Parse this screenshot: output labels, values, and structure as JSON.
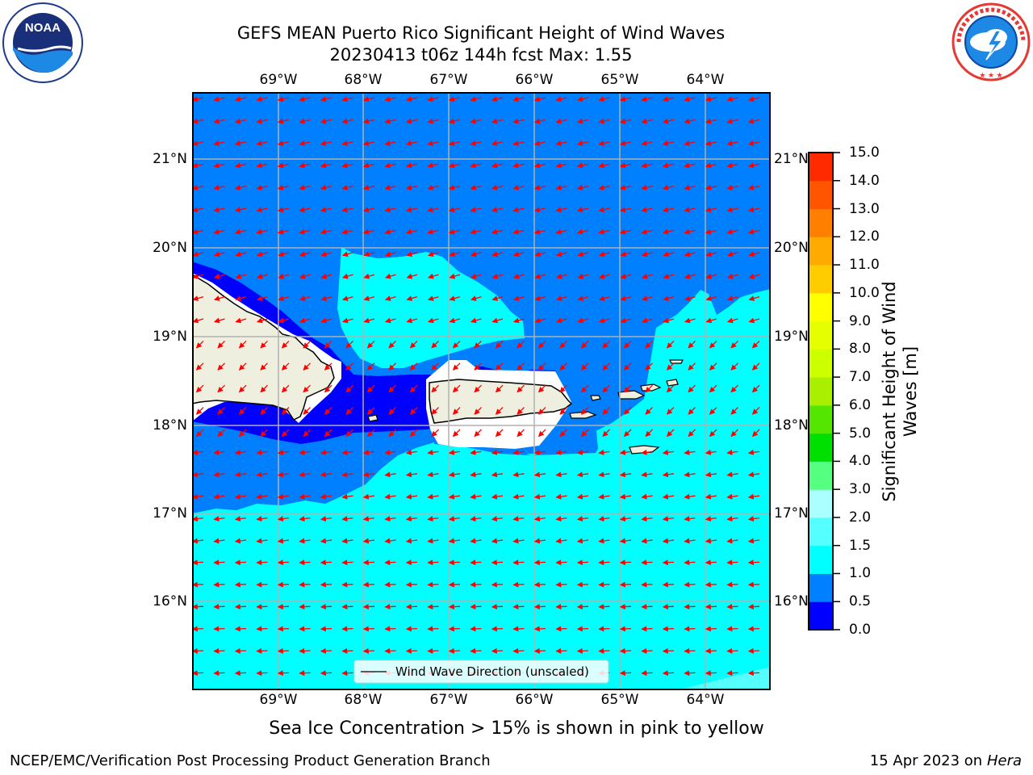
{
  "title_line1": "GEFS MEAN Puerto Rico Significant Height of Wind Waves",
  "title_line2": "20230413 t06z 144h fcst   Max: 1.55",
  "logos": {
    "left": "NOAA",
    "right": "NATIONAL WEATHER SERVICE",
    "left_ring": "NATIONAL OCEANIC AND ATMOSPHERIC ADMINISTRATION · U.S. DEPARTMENT OF COMMERCE"
  },
  "lon_labels": [
    "69°W",
    "68°W",
    "67°W",
    "66°W",
    "65°W",
    "64°W"
  ],
  "lat_labels": [
    "21°N",
    "20°N",
    "19°N",
    "18°N",
    "17°N",
    "16°N"
  ],
  "legend_label": "Wind Wave Direction (unscaled)",
  "colorbar": {
    "title": "Significant Height of Wind Waves [m]",
    "ticks": [
      "0.0",
      "0.5",
      "1.0",
      "1.5",
      "2.0",
      "3.0",
      "4.0",
      "5.0",
      "6.0",
      "7.0",
      "8.0",
      "9.0",
      "10.0",
      "11.0",
      "12.0",
      "13.0",
      "14.0",
      "15.0"
    ],
    "colors": [
      "#0000ff",
      "#0080ff",
      "#00ffff",
      "#55ffff",
      "#aaffff",
      "#55ff80",
      "#00e000",
      "#55e600",
      "#aaee00",
      "#ccff00",
      "#e6ff00",
      "#ffff00",
      "#ffcc00",
      "#ffaa00",
      "#ff8000",
      "#ff5500",
      "#ff2a00"
    ]
  },
  "ice_note": "Sea Ice Concentration > 15% is shown in pink to yellow",
  "footer_left": "NCEP/EMC/Verification Post Processing Product Generation Branch",
  "footer_date": "15 Apr 2023 on ",
  "footer_host": "Hera"
}
